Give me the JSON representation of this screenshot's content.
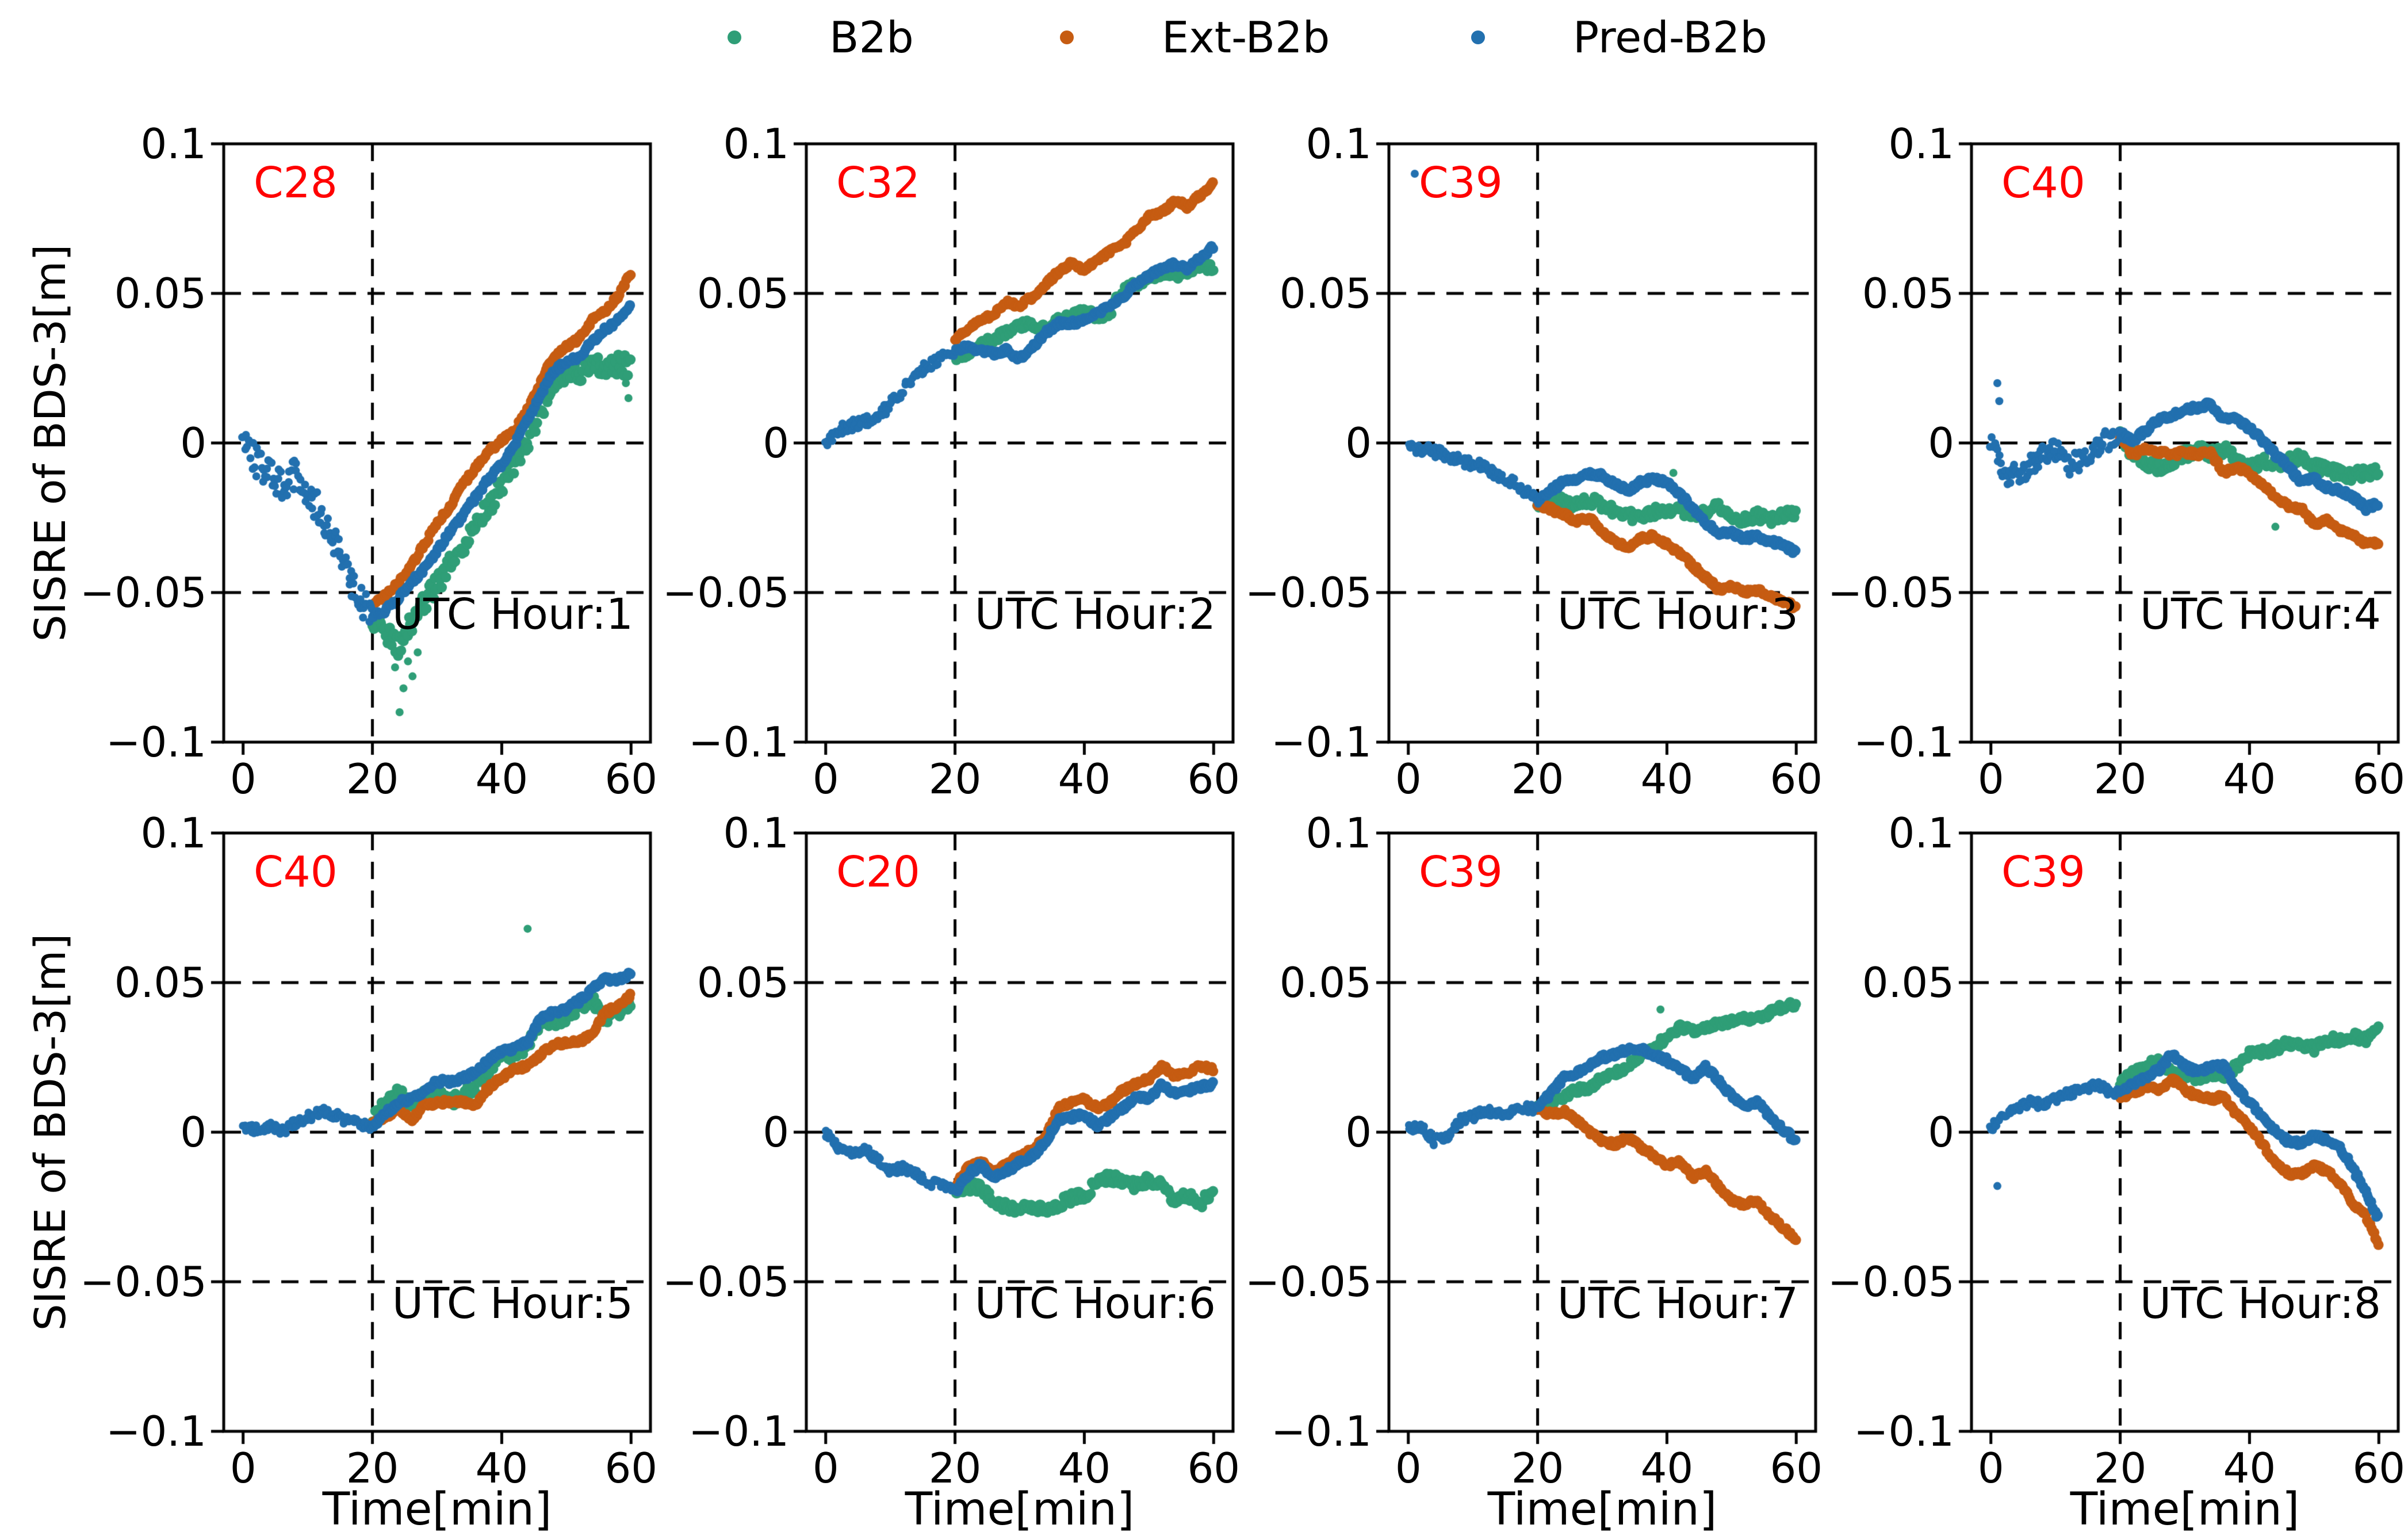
{
  "figure": {
    "ylabel": "SISRE of BDS-3[m]",
    "xlabel": "Time[min]",
    "background": "#ffffff",
    "text_color": "#000000",
    "sat_label_color": "#ff0000",
    "grid_color": "#000000",
    "legend": [
      {
        "label": "B2b",
        "color": "#2f9e77"
      },
      {
        "label": "Ext-B2b",
        "color": "#c65c12"
      },
      {
        "label": "Pred-B2b",
        "color": "#2270af"
      }
    ],
    "axis": {
      "xlim": [
        -3,
        63
      ],
      "ylim": [
        -0.1,
        0.1
      ],
      "xticks": [
        0,
        20,
        40,
        60
      ],
      "xtick_labels": [
        "0",
        "20",
        "40",
        "60"
      ],
      "yticks": [
        0.1,
        0.05,
        0,
        -0.05,
        -0.1
      ],
      "ytick_labels": [
        "0.1",
        "0.05",
        "0",
        "−0.05",
        "−0.1"
      ],
      "grid_y": [
        0.05,
        0,
        -0.05
      ],
      "grid_x": [
        20
      ]
    }
  },
  "chart_data": [
    {
      "type": "scatter",
      "sat": "C28",
      "annotation": "UTC Hour:1",
      "x_unit": "min",
      "series": [
        {
          "name": "B2b",
          "x_start": 20,
          "x_step": 2,
          "noise": 0.0035,
          "y": [
            -0.059,
            -0.063,
            -0.068,
            -0.06,
            -0.054,
            -0.047,
            -0.041,
            -0.034,
            -0.027,
            -0.021,
            -0.014,
            -0.007,
            0.001,
            0.011,
            0.02,
            0.024,
            0.024,
            0.026,
            0.025,
            0.026,
            0.026
          ]
        },
        {
          "name": "Ext-B2b",
          "x_start": 20,
          "x_step": 2,
          "noise": 0.0008,
          "y": [
            -0.054,
            -0.051,
            -0.047,
            -0.041,
            -0.034,
            -0.027,
            -0.021,
            -0.014,
            -0.008,
            -0.003,
            0.001,
            0.004,
            0.011,
            0.02,
            0.029,
            0.032,
            0.035,
            0.041,
            0.044,
            0.049,
            0.057
          ]
        },
        {
          "name": "Pred-B2b",
          "x_start": 0,
          "x_step": 2,
          "noise": 0.005,
          "y": [
            0.0,
            -0.006,
            -0.01,
            -0.014,
            -0.01,
            -0.016,
            -0.024,
            -0.032,
            -0.042,
            -0.052,
            -0.058,
            -0.056,
            -0.052,
            -0.047,
            -0.042,
            -0.036,
            -0.03,
            -0.024,
            -0.018,
            -0.012,
            -0.007,
            -0.001,
            0.008,
            0.016,
            0.024,
            0.027,
            0.029,
            0.034,
            0.038,
            0.041,
            0.046
          ]
        }
      ],
      "outliers": [
        {
          "series": "B2b",
          "points": [
            [
              23.5,
              -0.075
            ],
            [
              24.2,
              -0.09
            ],
            [
              24.8,
              -0.082
            ],
            [
              25.5,
              -0.073
            ],
            [
              26.2,
              -0.078
            ],
            [
              27.0,
              -0.07
            ],
            [
              59.2,
              0.02
            ],
            [
              59.6,
              0.015
            ]
          ]
        }
      ]
    },
    {
      "type": "scatter",
      "sat": "C32",
      "annotation": "UTC Hour:2",
      "x_unit": "min",
      "series": [
        {
          "name": "B2b",
          "x_start": 20,
          "x_step": 2,
          "noise": 0.0015,
          "y": [
            0.029,
            0.03,
            0.033,
            0.035,
            0.037,
            0.039,
            0.04,
            0.038,
            0.041,
            0.042,
            0.044,
            0.042,
            0.044,
            0.051,
            0.053,
            0.055,
            0.057,
            0.056,
            0.057,
            0.06,
            0.058
          ]
        },
        {
          "name": "Ext-B2b",
          "x_start": 20,
          "x_step": 2,
          "noise": 0.0008,
          "y": [
            0.034,
            0.038,
            0.041,
            0.043,
            0.047,
            0.046,
            0.049,
            0.053,
            0.057,
            0.06,
            0.058,
            0.061,
            0.064,
            0.066,
            0.071,
            0.076,
            0.077,
            0.081,
            0.079,
            0.083,
            0.087
          ]
        },
        {
          "name": "Pred-B2b",
          "x_start": 0,
          "x_step": 2,
          "noise": 0.0018,
          "y": [
            0.0,
            0.004,
            0.006,
            0.007,
            0.009,
            0.013,
            0.018,
            0.023,
            0.026,
            0.029,
            0.031,
            0.032,
            0.031,
            0.03,
            0.031,
            0.028,
            0.032,
            0.037,
            0.04,
            0.04,
            0.041,
            0.043,
            0.046,
            0.049,
            0.053,
            0.056,
            0.058,
            0.06,
            0.058,
            0.062,
            0.066
          ]
        }
      ],
      "outliers": []
    },
    {
      "type": "scatter",
      "sat": "C39",
      "annotation": "UTC Hour:3",
      "x_unit": "min",
      "series": [
        {
          "name": "B2b",
          "x_start": 20,
          "x_step": 2,
          "noise": 0.0018,
          "y": [
            -0.02,
            -0.02,
            -0.019,
            -0.021,
            -0.019,
            -0.021,
            -0.023,
            -0.024,
            -0.026,
            -0.023,
            -0.022,
            -0.023,
            -0.023,
            -0.024,
            -0.021,
            -0.025,
            -0.026,
            -0.024,
            -0.026,
            -0.024,
            -0.024
          ]
        },
        {
          "name": "Ext-B2b",
          "x_start": 20,
          "x_step": 2,
          "noise": 0.0008,
          "y": [
            -0.021,
            -0.022,
            -0.024,
            -0.026,
            -0.025,
            -0.03,
            -0.033,
            -0.035,
            -0.032,
            -0.031,
            -0.034,
            -0.037,
            -0.041,
            -0.045,
            -0.049,
            -0.048,
            -0.05,
            -0.049,
            -0.051,
            -0.053,
            -0.055
          ]
        },
        {
          "name": "Pred-B2b",
          "x_start": 0,
          "x_step": 2,
          "noise": 0.0018,
          "y": [
            -0.002,
            -0.002,
            -0.003,
            -0.004,
            -0.006,
            -0.007,
            -0.008,
            -0.011,
            -0.013,
            -0.016,
            -0.019,
            -0.016,
            -0.013,
            -0.012,
            -0.01,
            -0.011,
            -0.014,
            -0.016,
            -0.013,
            -0.012,
            -0.013,
            -0.017,
            -0.022,
            -0.027,
            -0.03,
            -0.03,
            -0.032,
            -0.031,
            -0.033,
            -0.034,
            -0.037
          ]
        }
      ],
      "outliers": [
        {
          "series": "Pred-B2b",
          "points": [
            [
              1,
              0.09
            ]
          ]
        },
        {
          "series": "B2b",
          "points": [
            [
              41,
              -0.01
            ]
          ]
        }
      ]
    },
    {
      "type": "scatter",
      "sat": "C40",
      "annotation": "UTC Hour:4",
      "x_unit": "min",
      "series": [
        {
          "name": "B2b",
          "x_start": 20,
          "x_step": 2,
          "noise": 0.002,
          "y": [
            0.003,
            -0.004,
            -0.007,
            -0.008,
            -0.006,
            -0.004,
            -0.002,
            -0.004,
            -0.002,
            -0.005,
            -0.008,
            -0.006,
            -0.007,
            -0.006,
            -0.005,
            -0.008,
            -0.009,
            -0.01,
            -0.011,
            -0.01,
            -0.01
          ]
        },
        {
          "name": "Ext-B2b",
          "x_start": 20,
          "x_step": 2,
          "noise": 0.0008,
          "y": [
            0.002,
            -0.004,
            -0.002,
            -0.003,
            -0.004,
            -0.003,
            -0.004,
            -0.003,
            -0.01,
            -0.008,
            -0.01,
            -0.014,
            -0.018,
            -0.021,
            -0.022,
            -0.027,
            -0.026,
            -0.029,
            -0.031,
            -0.034,
            -0.033
          ]
        },
        {
          "name": "Pred-B2b",
          "x_start": 0,
          "x_step": 2,
          "noise": 0.0035,
          "y": [
            0.0,
            -0.011,
            -0.01,
            -0.008,
            -0.004,
            -0.002,
            -0.008,
            -0.005,
            -0.002,
            0.001,
            0.003,
            0.001,
            0.004,
            0.008,
            0.009,
            0.011,
            0.012,
            0.013,
            0.008,
            0.008,
            0.005,
            0.001,
            -0.004,
            -0.008,
            -0.013,
            -0.012,
            -0.015,
            -0.016,
            -0.018,
            -0.022,
            -0.02
          ]
        }
      ],
      "outliers": [
        {
          "series": "Pred-B2b",
          "points": [
            [
              1,
              0.02
            ],
            [
              1.3,
              0.014
            ]
          ]
        },
        {
          "series": "B2b",
          "points": [
            [
              44,
              -0.028
            ]
          ]
        }
      ]
    },
    {
      "type": "scatter",
      "sat": "C40",
      "annotation": "UTC Hour:5",
      "x_unit": "min",
      "series": [
        {
          "name": "B2b",
          "x_start": 20,
          "x_step": 2,
          "noise": 0.002,
          "y": [
            0.004,
            0.01,
            0.013,
            0.01,
            0.012,
            0.013,
            0.01,
            0.013,
            0.015,
            0.021,
            0.026,
            0.026,
            0.029,
            0.036,
            0.037,
            0.038,
            0.042,
            0.044,
            0.038,
            0.04,
            0.044
          ]
        },
        {
          "name": "Ext-B2b",
          "x_start": 20,
          "x_step": 2,
          "noise": 0.0008,
          "y": [
            0.003,
            0.005,
            0.008,
            0.004,
            0.009,
            0.01,
            0.01,
            0.01,
            0.009,
            0.015,
            0.018,
            0.021,
            0.022,
            0.026,
            0.029,
            0.03,
            0.03,
            0.033,
            0.04,
            0.042,
            0.046
          ]
        },
        {
          "name": "Pred-B2b",
          "x_start": 0,
          "x_step": 2,
          "noise": 0.0015,
          "y": [
            0.001,
            0.001,
            0.002,
            0.0,
            0.003,
            0.005,
            0.007,
            0.006,
            0.004,
            0.003,
            0.002,
            0.006,
            0.01,
            0.011,
            0.014,
            0.017,
            0.017,
            0.018,
            0.02,
            0.024,
            0.027,
            0.028,
            0.03,
            0.038,
            0.04,
            0.041,
            0.044,
            0.048,
            0.051,
            0.051,
            0.053
          ]
        }
      ],
      "outliers": [
        {
          "series": "B2b",
          "points": [
            [
              44,
              0.068
            ]
          ]
        }
      ]
    },
    {
      "type": "scatter",
      "sat": "C20",
      "annotation": "UTC Hour:6",
      "x_unit": "min",
      "series": [
        {
          "name": "B2b",
          "x_start": 20,
          "x_step": 2,
          "noise": 0.0018,
          "y": [
            -0.02,
            -0.018,
            -0.019,
            -0.023,
            -0.025,
            -0.026,
            -0.025,
            -0.026,
            -0.024,
            -0.022,
            -0.021,
            -0.017,
            -0.015,
            -0.017,
            -0.018,
            -0.016,
            -0.018,
            -0.023,
            -0.021,
            -0.024,
            -0.019
          ]
        },
        {
          "name": "Ext-B2b",
          "x_start": 20,
          "x_step": 2,
          "noise": 0.0008,
          "y": [
            -0.018,
            -0.012,
            -0.01,
            -0.013,
            -0.011,
            -0.008,
            -0.006,
            -0.002,
            0.008,
            0.01,
            0.011,
            0.008,
            0.01,
            0.014,
            0.016,
            0.018,
            0.022,
            0.019,
            0.02,
            0.022,
            0.021
          ]
        },
        {
          "name": "Pred-B2b",
          "x_start": 0,
          "x_step": 2,
          "noise": 0.0015,
          "y": [
            0.0,
            -0.005,
            -0.007,
            -0.006,
            -0.009,
            -0.013,
            -0.012,
            -0.014,
            -0.017,
            -0.017,
            -0.02,
            -0.014,
            -0.011,
            -0.015,
            -0.013,
            -0.01,
            -0.008,
            -0.003,
            0.004,
            0.005,
            0.006,
            0.002,
            0.005,
            0.008,
            0.012,
            0.011,
            0.016,
            0.013,
            0.014,
            0.015,
            0.016
          ]
        }
      ],
      "outliers": []
    },
    {
      "type": "scatter",
      "sat": "C39",
      "annotation": "UTC Hour:7",
      "x_unit": "min",
      "series": [
        {
          "name": "B2b",
          "x_start": 20,
          "x_step": 2,
          "noise": 0.0012,
          "y": [
            0.008,
            0.01,
            0.012,
            0.014,
            0.015,
            0.018,
            0.02,
            0.022,
            0.026,
            0.028,
            0.032,
            0.035,
            0.034,
            0.035,
            0.036,
            0.037,
            0.038,
            0.038,
            0.04,
            0.042,
            0.043
          ]
        },
        {
          "name": "Ext-B2b",
          "x_start": 20,
          "x_step": 2,
          "noise": 0.0008,
          "y": [
            0.008,
            0.006,
            0.007,
            0.004,
            0.0,
            -0.003,
            -0.004,
            -0.002,
            -0.005,
            -0.008,
            -0.011,
            -0.01,
            -0.015,
            -0.013,
            -0.018,
            -0.023,
            -0.024,
            -0.023,
            -0.028,
            -0.032,
            -0.036
          ]
        },
        {
          "name": "Pred-B2b",
          "x_start": 0,
          "x_step": 2,
          "noise": 0.0015,
          "y": [
            0.001,
            0.002,
            -0.003,
            -0.002,
            0.004,
            0.005,
            0.007,
            0.006,
            0.007,
            0.008,
            0.008,
            0.013,
            0.018,
            0.02,
            0.022,
            0.025,
            0.026,
            0.028,
            0.028,
            0.026,
            0.024,
            0.021,
            0.018,
            0.022,
            0.017,
            0.012,
            0.009,
            0.01,
            0.005,
            0.001,
            -0.003
          ]
        }
      ],
      "outliers": [
        {
          "series": "B2b",
          "points": [
            [
              39,
              0.041
            ]
          ]
        }
      ]
    },
    {
      "type": "scatter",
      "sat": "C39",
      "annotation": "UTC Hour:8",
      "x_unit": "min",
      "series": [
        {
          "name": "B2b",
          "x_start": 20,
          "x_step": 2,
          "noise": 0.0015,
          "y": [
            0.016,
            0.02,
            0.022,
            0.024,
            0.02,
            0.019,
            0.018,
            0.02,
            0.018,
            0.022,
            0.026,
            0.027,
            0.028,
            0.03,
            0.029,
            0.028,
            0.031,
            0.031,
            0.032,
            0.031,
            0.035
          ]
        },
        {
          "name": "Ext-B2b",
          "x_start": 20,
          "x_step": 2,
          "noise": 0.0008,
          "y": [
            0.012,
            0.013,
            0.015,
            0.014,
            0.018,
            0.014,
            0.012,
            0.011,
            0.012,
            0.006,
            0.002,
            -0.004,
            -0.01,
            -0.014,
            -0.014,
            -0.011,
            -0.013,
            -0.017,
            -0.024,
            -0.028,
            -0.038
          ]
        },
        {
          "name": "Pred-B2b",
          "x_start": 0,
          "x_step": 2,
          "noise": 0.0015,
          "y": [
            0.001,
            0.006,
            0.008,
            0.01,
            0.009,
            0.011,
            0.013,
            0.014,
            0.016,
            0.014,
            0.013,
            0.016,
            0.018,
            0.021,
            0.026,
            0.022,
            0.02,
            0.022,
            0.022,
            0.015,
            0.01,
            0.005,
            0.0,
            -0.003,
            -0.004,
            -0.001,
            -0.003,
            -0.005,
            -0.012,
            -0.02,
            -0.029
          ]
        }
      ],
      "outliers": [
        {
          "series": "Pred-B2b",
          "points": [
            [
              1,
              -0.018
            ]
          ]
        }
      ]
    }
  ]
}
